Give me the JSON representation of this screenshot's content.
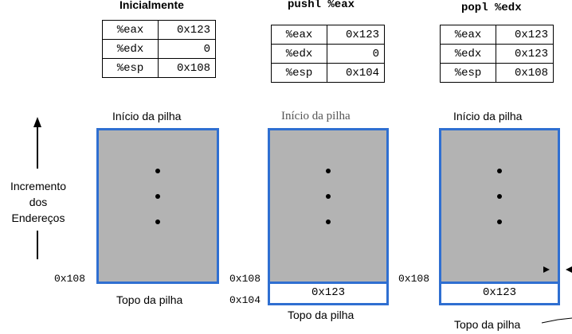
{
  "panels": [
    {
      "title": "Inicialmente",
      "registers": [
        {
          "name": "%eax",
          "value": "0x123"
        },
        {
          "name": "%edx",
          "value": "0"
        },
        {
          "name": "%esp",
          "value": "0x108"
        }
      ],
      "stack_start_label": "Início da pilha",
      "stack_top_label": "Topo da pilha",
      "address_labels": [
        "0x108"
      ]
    },
    {
      "title": "pushl %eax",
      "registers": [
        {
          "name": "%eax",
          "value": "0x123"
        },
        {
          "name": "%edx",
          "value": "0"
        },
        {
          "name": "%esp",
          "value": "0x104"
        }
      ],
      "stack_start_label": "Início da pilha",
      "stack_top_label": "Topo da pilha",
      "address_labels": [
        "0x108",
        "0x104"
      ],
      "pushed_cell": "0x123"
    },
    {
      "title": "popl %edx",
      "registers": [
        {
          "name": "%eax",
          "value": "0x123"
        },
        {
          "name": "%edx",
          "value": "0x123"
        },
        {
          "name": "%esp",
          "value": "0x108"
        }
      ],
      "stack_start_label": "Início da pilha",
      "stack_top_label": "Topo da pilha",
      "address_labels": [
        "0x108"
      ],
      "popped_cell": "0x123"
    }
  ],
  "side_label": [
    "Incremento",
    "dos",
    "Endereços"
  ],
  "colors": {
    "stack_fill": "#b3b3b3",
    "stack_border": "#2f6fd1"
  }
}
